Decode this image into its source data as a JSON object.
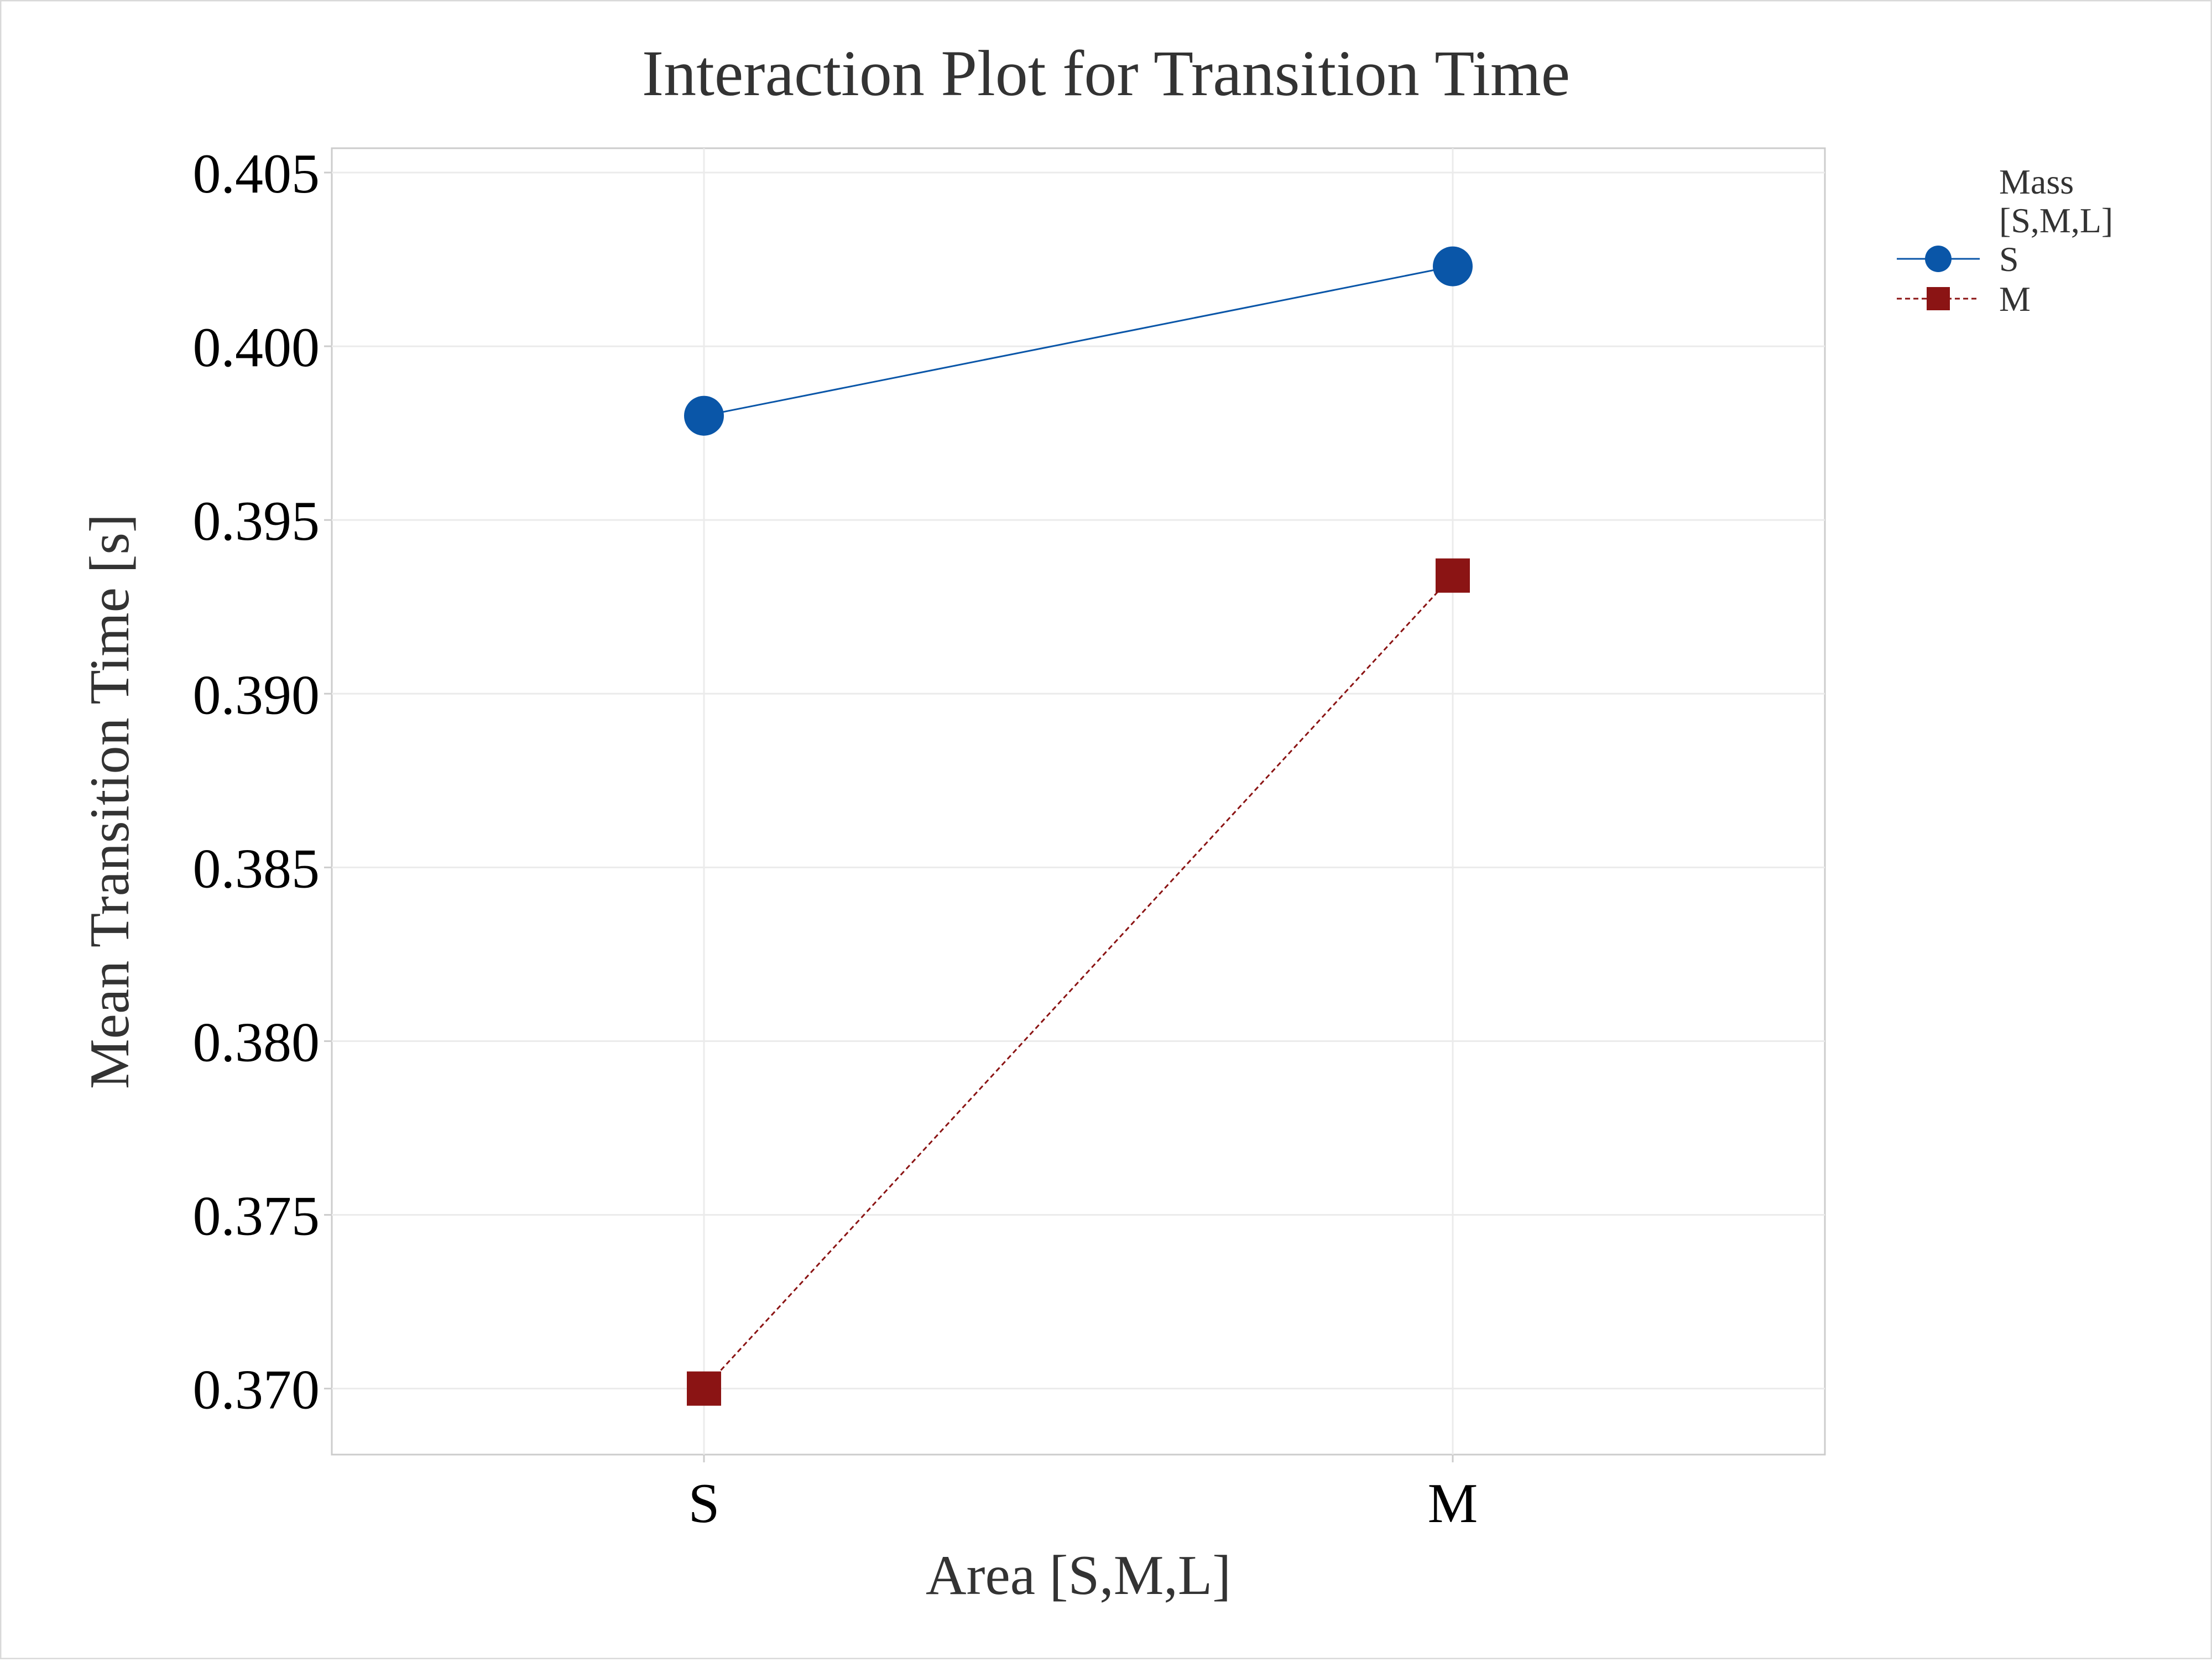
{
  "chart_data": {
    "type": "line",
    "title": "Interaction Plot for Transition Time",
    "xlabel": "Area [S,M,L]",
    "ylabel": "Mean Transition Time [s]",
    "categories": [
      "S",
      "M"
    ],
    "ylim": [
      0.3681,
      0.4057
    ],
    "yticks": [
      0.37,
      0.375,
      0.38,
      0.385,
      0.39,
      0.395,
      0.4,
      0.405
    ],
    "ytick_labels": [
      "0.370",
      "0.375",
      "0.380",
      "0.385",
      "0.390",
      "0.395",
      "0.400",
      "0.405"
    ],
    "grid": true,
    "legend": {
      "title_lines": [
        "Mass",
        "[S,M,L]"
      ],
      "placement": "right"
    },
    "series": [
      {
        "name": "S",
        "values": [
          0.398,
          0.4023
        ],
        "color": "#0a56a8",
        "marker": "circle",
        "line_style": "solid"
      },
      {
        "name": "M",
        "values": [
          0.37,
          0.3934
        ],
        "color": "#8b1414",
        "marker": "square",
        "line_style": "dashed"
      }
    ]
  }
}
